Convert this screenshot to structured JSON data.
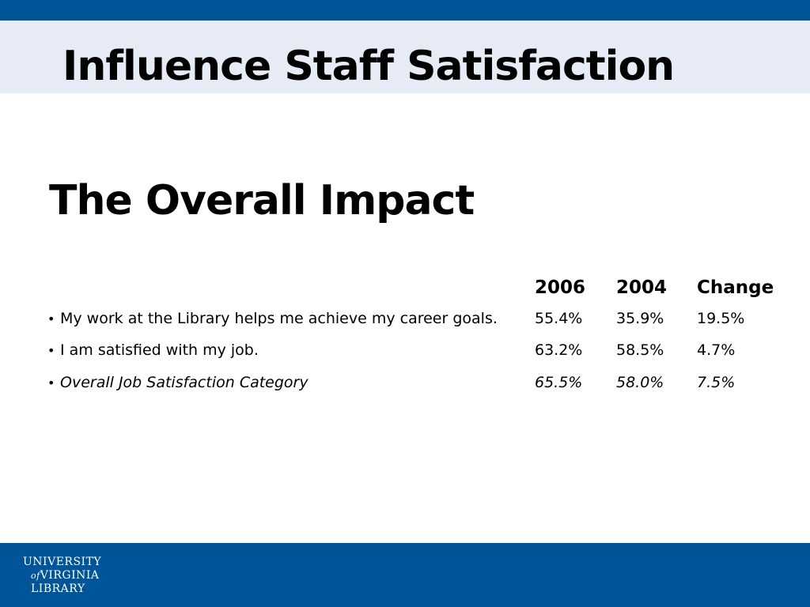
{
  "slide": {
    "title": "Influence Staff Satisfaction",
    "subtitle": "The Overall Impact"
  },
  "table": {
    "columns": [
      "2006",
      "2004",
      "Change"
    ],
    "rows": [
      {
        "label": "My work at the Library helps me achieve my career goals.",
        "values": [
          "55.4%",
          "35.9%",
          "19.5%"
        ],
        "italic": false
      },
      {
        "label": "I am satisfied with my job.",
        "values": [
          "63.2%",
          "58.5%",
          "4.7%"
        ],
        "italic": false
      },
      {
        "label": "Overall Job Satisfaction Category",
        "values": [
          "65.5%",
          "58.0%",
          "7.5%"
        ],
        "italic": true
      }
    ]
  },
  "footer": {
    "logo": {
      "line1": "UNIVERSITY",
      "line2_of": "of",
      "line2": "VIRGINIA",
      "line3": "LIBRARY"
    }
  },
  "bullet": "•",
  "colors": {
    "brand_blue": "#005599",
    "title_band": "#e6ebf5",
    "text": "#000000",
    "background": "#ffffff"
  }
}
